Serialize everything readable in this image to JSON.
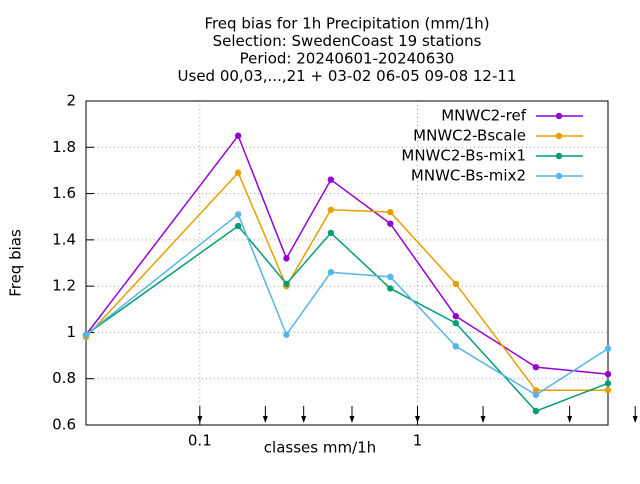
{
  "chart_data": {
    "type": "line",
    "title": [
      "Freq bias  for 1h Precipitation (mm/1h)",
      "Selection: SwedenCoast     19 stations",
      "Period: 20240601-20240630",
      "Used 00,03,...,21 + 03-02 06-05 09-08 12-11"
    ],
    "xlabel": "classes mm/1h",
    "ylabel": "Freq bias",
    "x": [
      0.03,
      0.15,
      0.25,
      0.4,
      0.75,
      1.5,
      3.5,
      7.5
    ],
    "series": [
      {
        "name": "MNWC2-ref",
        "color": "#9400d3",
        "values": [
          0.99,
          1.85,
          1.32,
          1.66,
          1.47,
          1.07,
          0.85,
          0.82
        ]
      },
      {
        "name": "MNWC2-Bscale",
        "color": "#e69f00",
        "values": [
          0.98,
          1.69,
          1.2,
          1.53,
          1.52,
          1.21,
          0.75,
          0.75
        ]
      },
      {
        "name": "MNWC2-Bs-mix1",
        "color": "#009e73",
        "values": [
          0.99,
          1.46,
          1.21,
          1.43,
          1.19,
          1.04,
          0.66,
          0.78
        ]
      },
      {
        "name": "MNWC-Bs-mix2",
        "color": "#56b4e9",
        "values": [
          0.99,
          1.51,
          0.99,
          1.26,
          1.24,
          0.94,
          0.73,
          0.93
        ]
      }
    ],
    "xlim": [
      0.03,
      7.5
    ],
    "xlog": true,
    "xticks": [
      0.1,
      1
    ],
    "ylim": [
      0.6,
      2
    ],
    "yticks": [
      0.6,
      0.8,
      1,
      1.2,
      1.4,
      1.6,
      1.8,
      2
    ],
    "grid": true,
    "legend": "top-right",
    "class_limits": [
      0.1,
      0.2,
      0.3,
      0.5,
      1,
      2,
      5,
      10
    ]
  }
}
